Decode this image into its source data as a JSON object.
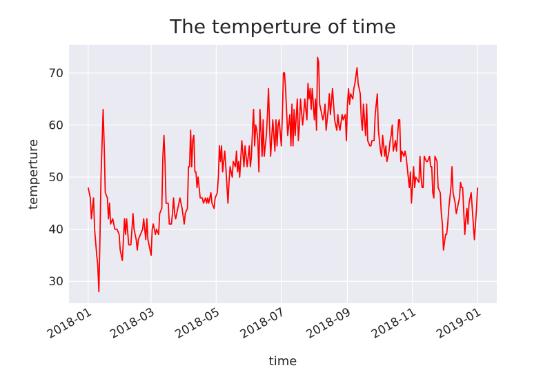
{
  "chart_data": {
    "type": "line",
    "title": "The temperture of time",
    "x_label": "time",
    "y_label": "temperture",
    "series": [
      {
        "name": "temperture",
        "color": "#ff0000",
        "x": [
          0,
          2,
          3,
          5,
          6,
          8,
          9,
          10,
          11,
          12,
          14,
          15,
          16,
          18,
          19,
          20,
          21,
          23,
          25,
          27,
          29,
          30,
          31,
          32,
          34,
          35,
          36,
          38,
          40,
          41,
          42,
          43,
          45,
          46,
          47,
          49,
          51,
          52,
          54,
          55,
          56,
          59,
          60,
          61,
          63,
          64,
          66,
          67,
          69,
          70,
          71,
          72,
          73,
          75,
          76,
          78,
          79,
          80,
          81,
          82,
          84,
          86,
          88,
          90,
          91,
          93,
          94,
          95,
          96,
          97,
          98,
          99,
          100,
          101,
          102,
          103,
          104,
          105,
          107,
          108,
          110,
          111,
          112,
          113,
          115,
          116,
          118,
          119,
          121,
          122,
          123,
          124,
          125,
          126,
          128,
          129,
          131,
          132,
          133,
          135,
          136,
          138,
          139,
          140,
          141,
          142,
          144,
          146,
          147,
          149,
          150,
          151,
          152,
          153,
          154,
          155,
          156,
          157,
          158,
          159,
          160,
          161,
          163,
          164,
          165,
          167,
          168,
          169,
          170,
          171,
          173,
          174,
          175,
          176,
          177,
          178,
          179,
          181,
          182,
          183,
          184,
          185,
          187,
          189,
          190,
          191,
          192,
          193,
          194,
          196,
          197,
          198,
          199,
          201,
          202,
          203,
          205,
          206,
          207,
          208,
          209,
          210,
          212,
          213,
          214,
          215,
          216,
          217,
          219,
          220,
          221,
          222,
          223,
          225,
          226,
          227,
          229,
          230,
          231,
          233,
          234,
          235,
          236,
          238,
          239,
          241,
          242,
          243,
          244,
          245,
          246,
          248,
          249,
          250,
          252,
          253,
          255,
          256,
          257,
          258,
          260,
          261,
          262,
          264,
          265,
          266,
          268,
          269,
          271,
          272,
          274,
          275,
          276,
          278,
          279,
          280,
          282,
          283,
          284,
          285,
          286,
          288,
          289,
          291,
          292,
          293,
          294,
          296,
          297,
          298,
          300,
          301,
          302,
          303,
          305,
          306,
          307,
          310,
          311,
          312,
          313,
          314,
          315,
          317,
          318,
          320,
          321,
          322,
          323,
          324,
          325,
          327,
          328,
          330,
          331,
          332,
          333,
          335,
          336,
          337,
          338,
          340,
          341,
          342,
          344,
          345,
          346,
          348,
          349,
          350,
          351,
          353,
          354,
          355,
          356,
          357,
          359,
          360,
          362,
          364,
          365
        ],
        "values": [
          48,
          46,
          42,
          46,
          40,
          35,
          33,
          28,
          38,
          50,
          63,
          56,
          47,
          46,
          42,
          45,
          41,
          42,
          40,
          40,
          39,
          36,
          35,
          34,
          42,
          39,
          42,
          37,
          37,
          40,
          43,
          40,
          38,
          36,
          38,
          39,
          40,
          42,
          38,
          42,
          38,
          35,
          40,
          41,
          39,
          40,
          39,
          43,
          44,
          54,
          58,
          53,
          45,
          45,
          41,
          41,
          43,
          46,
          43,
          42,
          44,
          46,
          44,
          41,
          43,
          44,
          52,
          52,
          59,
          52,
          57,
          58,
          51,
          51,
          48,
          50,
          48,
          46,
          46,
          45,
          46,
          45,
          46,
          45,
          47,
          45,
          44,
          46,
          47,
          50,
          56,
          53,
          56,
          51,
          55,
          52,
          45,
          49,
          52,
          50,
          53,
          52,
          55,
          51,
          53,
          50,
          57,
          52,
          56,
          52,
          54,
          56,
          52,
          54,
          59,
          63,
          56,
          60,
          59,
          57,
          51,
          63,
          54,
          61,
          54,
          58,
          62,
          67,
          60,
          54,
          61,
          58,
          55,
          61,
          56,
          60,
          61,
          56,
          62,
          70,
          70,
          67,
          58,
          62,
          56,
          64,
          56,
          63,
          58,
          65,
          57,
          60,
          65,
          60,
          62,
          65,
          61,
          68,
          65,
          67,
          63,
          67,
          61,
          65,
          59,
          73,
          72,
          64,
          62,
          61,
          62,
          64,
          59,
          63,
          66,
          62,
          67,
          64,
          61,
          59,
          62,
          60,
          59,
          62,
          61,
          62,
          57,
          64,
          67,
          64,
          66,
          65,
          67,
          68,
          71,
          68,
          66,
          61,
          59,
          64,
          58,
          64,
          57,
          56,
          56,
          57,
          57,
          62,
          66,
          59,
          55,
          54,
          58,
          54,
          56,
          53,
          55,
          57,
          58,
          60,
          55,
          57,
          55,
          61,
          61,
          53,
          55,
          54,
          55,
          54,
          50,
          48,
          51,
          45,
          52,
          48,
          50,
          49,
          54,
          50,
          48,
          48,
          54,
          53,
          53,
          54,
          52,
          52,
          47,
          46,
          54,
          53,
          48,
          47,
          43,
          41,
          36,
          39,
          39,
          41,
          44,
          48,
          52,
          47,
          45,
          43,
          44,
          46,
          49,
          48,
          48,
          39,
          42,
          44,
          41,
          45,
          47,
          44,
          38,
          44,
          48
        ]
      }
    ],
    "xlim": [
      -18,
      383
    ],
    "ylim": [
      25.8,
      75.4
    ],
    "xticks": [
      {
        "value": 0,
        "label": "2018-01"
      },
      {
        "value": 59,
        "label": "2018-03"
      },
      {
        "value": 120,
        "label": "2018-05"
      },
      {
        "value": 181,
        "label": "2018-07"
      },
      {
        "value": 243,
        "label": "2018-09"
      },
      {
        "value": 304,
        "label": "2018-11"
      },
      {
        "value": 365,
        "label": "2019-01"
      }
    ],
    "yticks": [
      30,
      40,
      50,
      60,
      70
    ],
    "grid": true
  }
}
